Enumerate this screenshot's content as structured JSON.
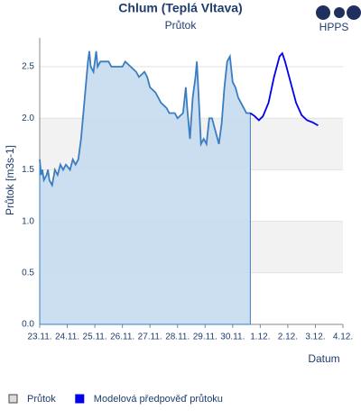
{
  "logo": {
    "text": "HPPS"
  },
  "chart_data": {
    "type": "line",
    "title": "Chlum (Teplá Vltava)",
    "subtitle": "Průtok",
    "y_label": "Průtok [m3s-1]",
    "x_label": "Datum",
    "xlim": [
      0,
      11
    ],
    "ylim": [
      0,
      2.78
    ],
    "xticks": [
      {
        "value": 0,
        "label": "23.11."
      },
      {
        "value": 1,
        "label": "24.11."
      },
      {
        "value": 2,
        "label": "25.11."
      },
      {
        "value": 3,
        "label": "26.11."
      },
      {
        "value": 4,
        "label": "27.11."
      },
      {
        "value": 5,
        "label": "28.11."
      },
      {
        "value": 6,
        "label": "29.11."
      },
      {
        "value": 7,
        "label": "30.11."
      },
      {
        "value": 8,
        "label": "1.12."
      },
      {
        "value": 9,
        "label": "2.12."
      },
      {
        "value": 10,
        "label": "3.12."
      },
      {
        "value": 11,
        "label": "4.12."
      }
    ],
    "yticks": [
      {
        "value": 0,
        "label": "0.0"
      },
      0.5,
      {
        "value": 1,
        "label": "1.0"
      },
      1.5,
      {
        "value": 2,
        "label": "2.0"
      },
      2.5
    ],
    "grid": true,
    "series": [
      {
        "name": "Průtok",
        "color": "#3a7dc0",
        "fill": "#c6dcf0",
        "area": true,
        "x": [
          0,
          0.05,
          0.1,
          0.15,
          0.25,
          0.3,
          0.35,
          0.45,
          0.55,
          0.65,
          0.75,
          0.85,
          0.95,
          1.1,
          1.2,
          1.3,
          1.4,
          1.5,
          1.6,
          1.7,
          1.75,
          1.8,
          1.85,
          1.95,
          2.05,
          2.1,
          2.2,
          2.5,
          2.6,
          3.0,
          3.1,
          3.3,
          3.5,
          3.6,
          3.8,
          3.9,
          4.0,
          4.2,
          4.4,
          4.6,
          4.7,
          4.9,
          5.0,
          5.2,
          5.3,
          5.35,
          5.45,
          5.55,
          5.65,
          5.7,
          5.75,
          5.85,
          5.95,
          6.05,
          6.15,
          6.25,
          6.35,
          6.5,
          6.6,
          6.7,
          6.8,
          6.9,
          7.0,
          7.1,
          7.2,
          7.3,
          7.4,
          7.5,
          7.64
        ],
        "values": [
          1.6,
          1.45,
          1.5,
          1.4,
          1.45,
          1.5,
          1.4,
          1.35,
          1.5,
          1.45,
          1.55,
          1.5,
          1.55,
          1.5,
          1.6,
          1.55,
          1.6,
          1.8,
          2.1,
          2.4,
          2.55,
          2.65,
          2.5,
          2.45,
          2.65,
          2.5,
          2.55,
          2.55,
          2.5,
          2.5,
          2.55,
          2.5,
          2.45,
          2.4,
          2.45,
          2.4,
          2.3,
          2.25,
          2.15,
          2.1,
          2.05,
          2.05,
          2.0,
          2.05,
          2.3,
          2.1,
          1.8,
          2.2,
          2.4,
          2.55,
          2.3,
          1.75,
          1.8,
          1.75,
          2.0,
          2.0,
          1.9,
          1.75,
          1.95,
          2.3,
          2.55,
          2.6,
          2.35,
          2.3,
          2.2,
          2.15,
          2.1,
          2.05,
          2.05
        ]
      },
      {
        "name": "Modelová předpověď průtoku",
        "color": "#0000ee",
        "area": false,
        "x": [
          7.64,
          7.8,
          7.95,
          8.1,
          8.3,
          8.5,
          8.7,
          8.8,
          8.9,
          9.1,
          9.3,
          9.5,
          9.7,
          9.9,
          10.1
        ],
        "values": [
          2.05,
          2.02,
          1.98,
          2.02,
          2.15,
          2.4,
          2.6,
          2.63,
          2.55,
          2.35,
          2.15,
          2.03,
          1.98,
          1.96,
          1.93
        ]
      }
    ]
  }
}
